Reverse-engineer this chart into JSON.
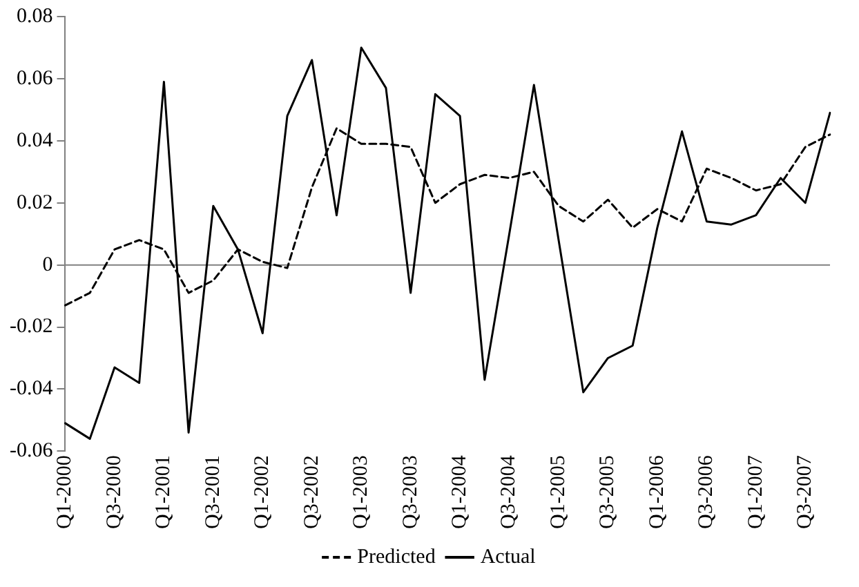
{
  "chart_data": {
    "type": "line",
    "categories": [
      "Q1-2000",
      null,
      "Q3-2000",
      null,
      "Q1-2001",
      null,
      "Q3-2001",
      null,
      "Q1-2002",
      null,
      "Q3-2002",
      null,
      "Q1-2003",
      null,
      "Q3-2003",
      null,
      "Q1-2004",
      null,
      "Q3-2004",
      null,
      "Q1-2005",
      null,
      "Q3-2005",
      null,
      "Q1-2006",
      null,
      "Q3-2006",
      null,
      "Q1-2007",
      null,
      "Q3-2007",
      null
    ],
    "series": [
      {
        "name": "Predicted",
        "color": "#000000",
        "line_style": "dashed",
        "values": [
          -0.013,
          -0.009,
          0.005,
          0.008,
          0.005,
          -0.009,
          -0.005,
          0.005,
          0.001,
          -0.001,
          0.025,
          0.044,
          0.039,
          0.039,
          0.038,
          0.02,
          0.026,
          0.029,
          0.028,
          0.03,
          0.019,
          0.014,
          0.021,
          0.012,
          0.018,
          0.014,
          0.031,
          0.028,
          0.024,
          0.026,
          0.038,
          0.042
        ]
      },
      {
        "name": "Actual",
        "color": "#000000",
        "line_style": "solid",
        "values": [
          -0.051,
          -0.056,
          -0.033,
          -0.038,
          0.059,
          -0.054,
          0.019,
          0.005,
          -0.022,
          0.048,
          0.066,
          0.016,
          0.07,
          0.057,
          -0.009,
          0.055,
          0.048,
          -0.037,
          0.01,
          0.058,
          0.008,
          -0.041,
          -0.03,
          -0.026,
          0.012,
          0.043,
          0.014,
          0.013,
          0.016,
          0.028,
          0.02,
          0.049
        ]
      }
    ],
    "ylim": [
      -0.06,
      0.08
    ],
    "yticks": [
      {
        "value": -0.06,
        "label": "-0.06"
      },
      {
        "value": -0.04,
        "label": "-0.04"
      },
      {
        "value": -0.02,
        "label": "-0.02"
      },
      0,
      {
        "value": 0.02,
        "label": "0.02"
      },
      {
        "value": 0.04,
        "label": "0.04"
      },
      {
        "value": 0.06,
        "label": "0.06"
      },
      {
        "value": 0.08,
        "label": "0.08"
      }
    ],
    "ref_lines": [
      {
        "axis": "y",
        "value": 0,
        "color": "#808080"
      }
    ],
    "grid": false,
    "legend": "bottom",
    "marker": "none"
  }
}
